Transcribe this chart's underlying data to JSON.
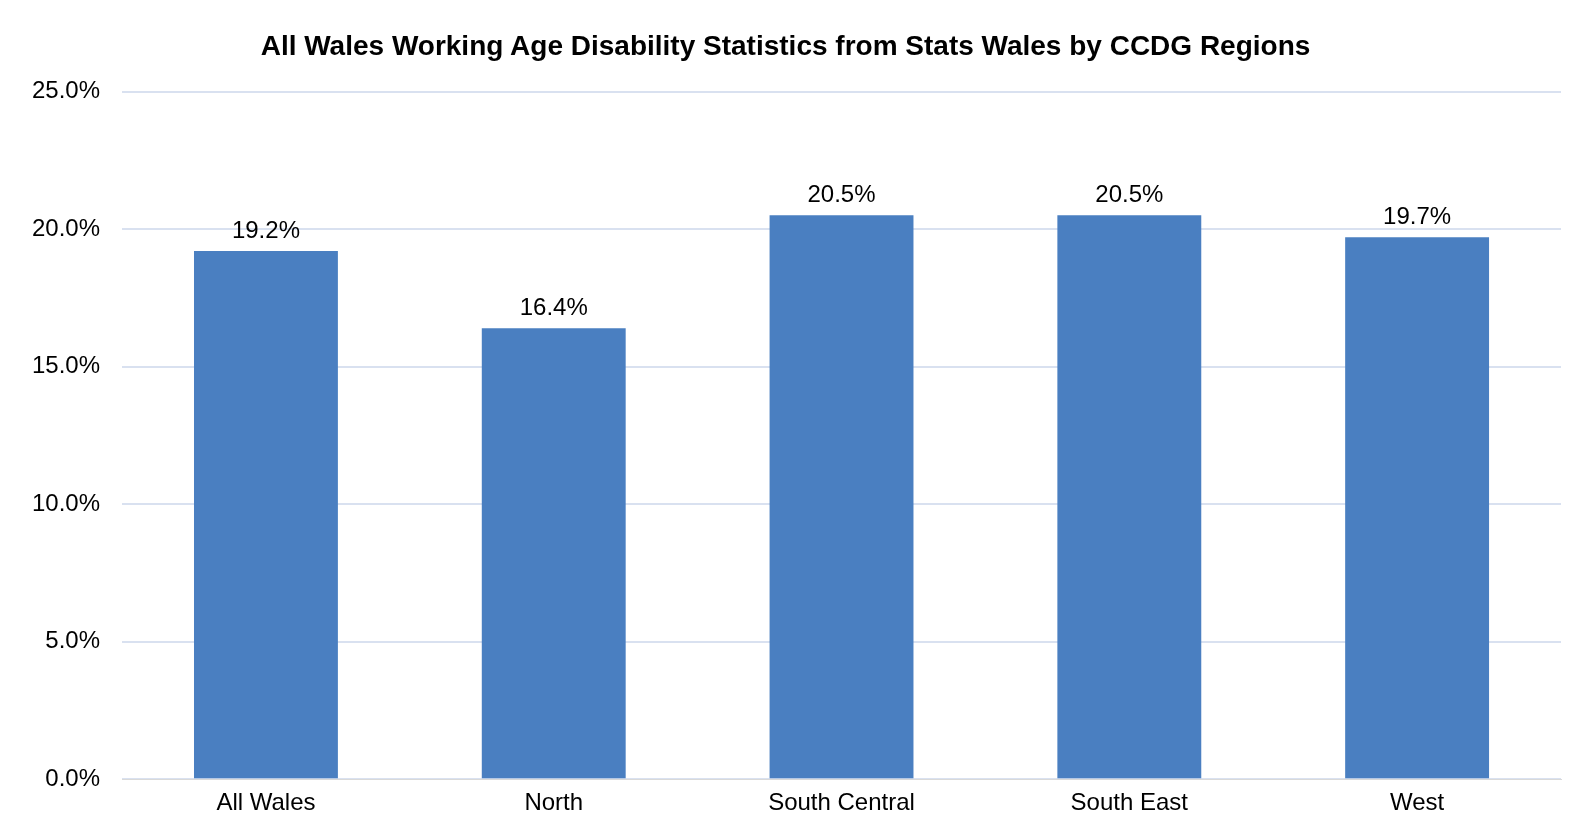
{
  "chart_data": {
    "type": "bar",
    "title": "All Wales Working Age Disability Statistics from Stats Wales by CCDG Regions",
    "categories": [
      "All Wales",
      "North",
      "South Central",
      "South East",
      "West"
    ],
    "values": [
      19.2,
      16.4,
      20.5,
      20.5,
      19.7
    ],
    "value_labels": [
      "19.2%",
      "16.4%",
      "20.5%",
      "20.5%",
      "19.7%"
    ],
    "color": "#4a7fc1",
    "ylim": [
      0,
      25
    ],
    "yticks": [
      {
        "value": 0,
        "label": "0.0%"
      },
      {
        "value": 5,
        "label": "5.0%"
      },
      {
        "value": 10,
        "label": "10.0%"
      },
      {
        "value": 15,
        "label": "15.0%"
      },
      {
        "value": 20,
        "label": "20.0%"
      },
      {
        "value": 25,
        "label": "25.0%"
      }
    ],
    "grid": "y",
    "legend": false
  }
}
